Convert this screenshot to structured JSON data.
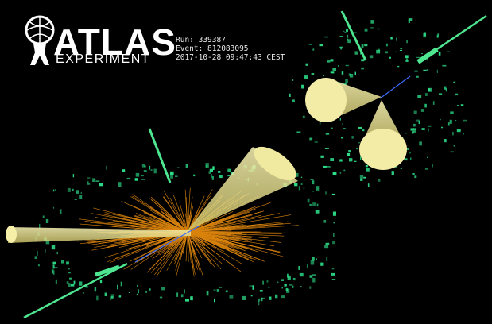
{
  "logo": {
    "word": "ATLAS",
    "sub": "EXPERIMENT"
  },
  "event": {
    "run_text": "Run: 339387",
    "event_text": "Event: 812083095",
    "date_text": "2017-10-28 09:47:43 CEST"
  },
  "colors": {
    "background": "#000000",
    "cone": "#efe89a",
    "tracks": "#ff9a10",
    "calorimeter": "#2ee08a",
    "muon": "#4ee690",
    "beam": "#3a6cff"
  }
}
